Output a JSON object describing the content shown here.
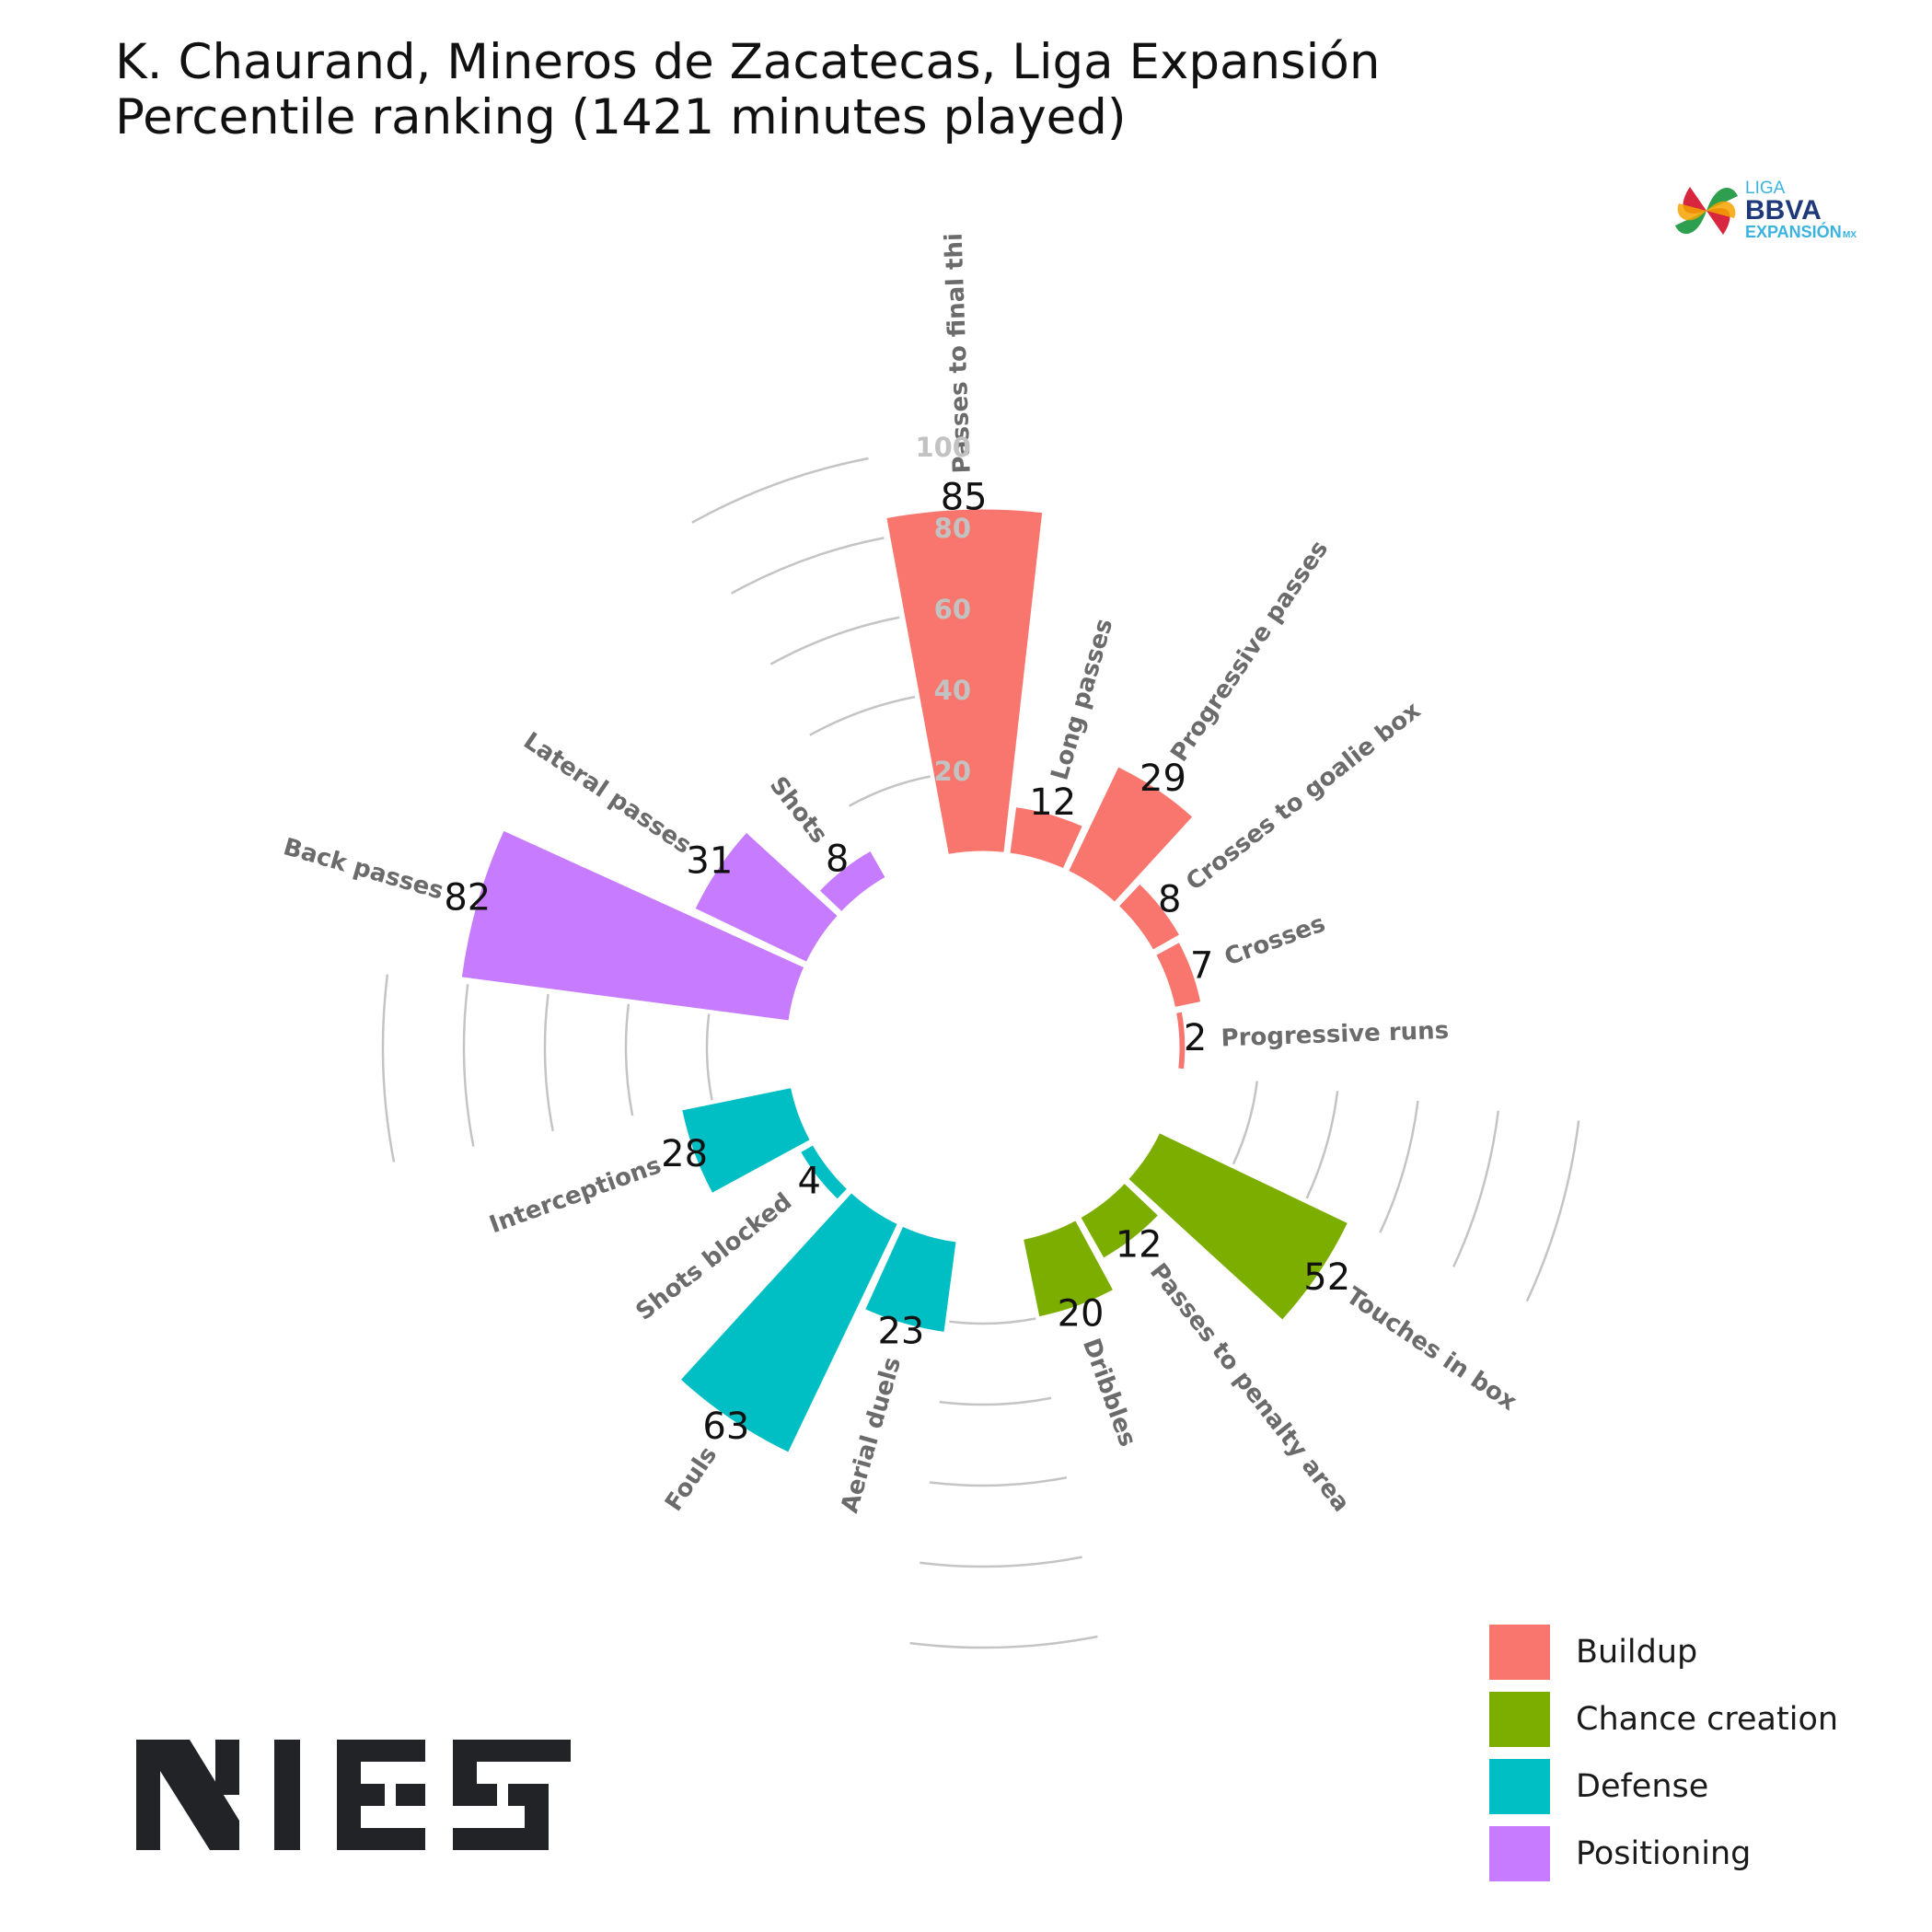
{
  "title": {
    "line1": "K. Chaurand, Mineros de Zacatecas, Liga Expansión",
    "line2": "Percentile ranking (1421 minutes played)"
  },
  "chart_data": {
    "type": "polar-bar",
    "radial_ticks": [
      "20",
      "40",
      "60",
      "80",
      "100"
    ],
    "rlim": [
      0,
      100
    ],
    "groups": [
      {
        "name": "Buildup",
        "color": "#F8766D"
      },
      {
        "name": "Chance creation",
        "color": "#7CAE00"
      },
      {
        "name": "Defense",
        "color": "#00BFC4"
      },
      {
        "name": "Positioning",
        "color": "#C77CFF"
      }
    ],
    "bars": [
      {
        "label": "Passes to final thi",
        "value": 85,
        "group": "Buildup"
      },
      {
        "label": "Long passes",
        "value": 12,
        "group": "Buildup"
      },
      {
        "label": "Progressive passes",
        "value": 29,
        "group": "Buildup"
      },
      {
        "label": "Crosses to goalie box",
        "value": 8,
        "group": "Buildup"
      },
      {
        "label": "Crosses",
        "value": 7,
        "group": "Buildup"
      },
      {
        "label": "Progressive runs",
        "value": 2,
        "group": "Buildup"
      },
      {
        "label": "Touches in box",
        "value": 52,
        "group": "Chance creation"
      },
      {
        "label": "Passes to penalty area",
        "value": 12,
        "group": "Chance creation"
      },
      {
        "label": "Dribbles",
        "value": 20,
        "group": "Chance creation"
      },
      {
        "label": "Aerial duels",
        "value": 23,
        "group": "Defense"
      },
      {
        "label": "Fouls",
        "value": 63,
        "group": "Defense"
      },
      {
        "label": "Shots blocked",
        "value": 4,
        "group": "Defense"
      },
      {
        "label": "Interceptions",
        "value": 28,
        "group": "Defense"
      },
      {
        "label": "Back passes",
        "value": 82,
        "group": "Positioning"
      },
      {
        "label": "Lateral passes",
        "value": 31,
        "group": "Positioning"
      },
      {
        "label": "Shots",
        "value": 8,
        "group": "Positioning"
      }
    ]
  },
  "logos": {
    "league": {
      "line1": "LIGA",
      "line2": "BBVA",
      "line3": "EXPANSIÓN",
      "suffix": "MX"
    },
    "brand": "NIES"
  }
}
